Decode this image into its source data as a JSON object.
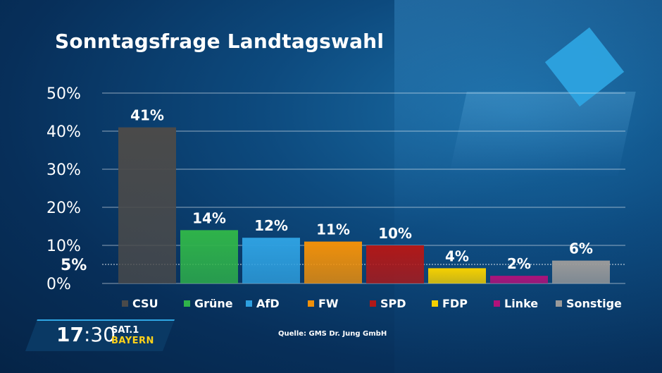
{
  "chart_data": {
    "type": "bar",
    "title": "Sonntagsfrage Landtagswahl",
    "categories": [
      "CSU",
      "Grüne",
      "AfD",
      "FW",
      "SPD",
      "FDP",
      "Linke",
      "Sonstige"
    ],
    "values": [
      41,
      14,
      12,
      11,
      10,
      4,
      2,
      6
    ],
    "value_labels": [
      "41%",
      "14%",
      "12%",
      "11%",
      "10%",
      "4%",
      "2%",
      "6%"
    ],
    "colors": [
      "#4a4a4a",
      "#2fb34a",
      "#2ea0e0",
      "#f0900a",
      "#b01818",
      "#f5d000",
      "#b0127a",
      "#9a9a9a"
    ],
    "ylim": [
      0,
      50
    ],
    "yticks": [
      0,
      10,
      20,
      30,
      40,
      50
    ],
    "ytick_labels": [
      "0%",
      "10%",
      "20%",
      "30%",
      "40%",
      "50%"
    ],
    "threshold": {
      "value": 5,
      "label": "5%"
    },
    "grid": true,
    "xlabel": "",
    "ylabel": ""
  },
  "source": "Quelle: GMS Dr. Jung GmbH",
  "clock": {
    "hours": "17",
    "sep": ":",
    "minutes": "30"
  },
  "channel": {
    "name": "SAT.1",
    "region": "BAYERN"
  }
}
